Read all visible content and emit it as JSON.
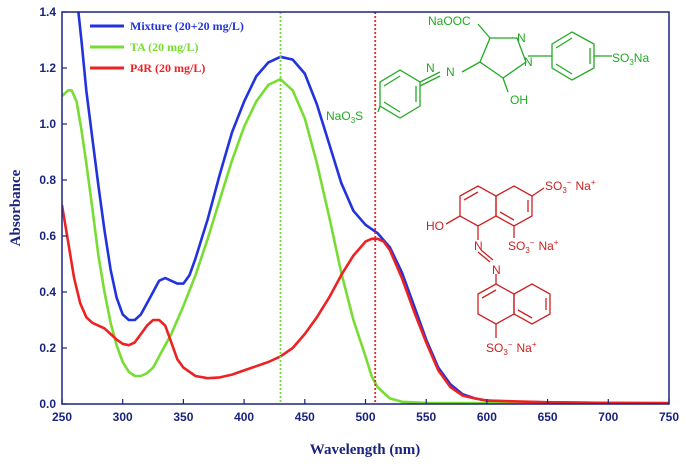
{
  "chart_data": {
    "type": "line",
    "xlabel": "Wavelength (nm)",
    "ylabel": "Absorbance",
    "xlim": [
      250,
      750
    ],
    "ylim": [
      0.0,
      1.4
    ],
    "xticks": [
      250,
      300,
      350,
      400,
      450,
      500,
      550,
      600,
      650,
      700,
      750
    ],
    "yticks": [
      0.0,
      0.2,
      0.4,
      0.6,
      0.8,
      1.0,
      1.2,
      1.4
    ],
    "xtick_labels": [
      "250",
      "300",
      "350",
      "400",
      "450",
      "500",
      "550",
      "600",
      "650",
      "700",
      "750"
    ],
    "ytick_labels": [
      "0.0",
      "0.2",
      "0.4",
      "0.6",
      "0.8",
      "1.0",
      "1.2",
      "1.4"
    ],
    "legend_position": "top-left",
    "grid": false,
    "series": [
      {
        "name": "Mixture (20+20 mg/L)",
        "color": "#2233dd",
        "points": [
          [
            262,
            1.46
          ],
          [
            266,
            1.3
          ],
          [
            270,
            1.12
          ],
          [
            275,
            0.95
          ],
          [
            280,
            0.78
          ],
          [
            285,
            0.62
          ],
          [
            290,
            0.48
          ],
          [
            295,
            0.38
          ],
          [
            300,
            0.32
          ],
          [
            305,
            0.3
          ],
          [
            310,
            0.3
          ],
          [
            315,
            0.32
          ],
          [
            320,
            0.36
          ],
          [
            325,
            0.4
          ],
          [
            330,
            0.44
          ],
          [
            335,
            0.45
          ],
          [
            340,
            0.44
          ],
          [
            345,
            0.43
          ],
          [
            350,
            0.43
          ],
          [
            355,
            0.46
          ],
          [
            360,
            0.52
          ],
          [
            370,
            0.66
          ],
          [
            380,
            0.82
          ],
          [
            390,
            0.97
          ],
          [
            400,
            1.08
          ],
          [
            410,
            1.17
          ],
          [
            420,
            1.22
          ],
          [
            430,
            1.24
          ],
          [
            440,
            1.23
          ],
          [
            450,
            1.18
          ],
          [
            460,
            1.07
          ],
          [
            470,
            0.93
          ],
          [
            480,
            0.79
          ],
          [
            490,
            0.69
          ],
          [
            500,
            0.64
          ],
          [
            510,
            0.61
          ],
          [
            520,
            0.56
          ],
          [
            530,
            0.47
          ],
          [
            540,
            0.35
          ],
          [
            550,
            0.23
          ],
          [
            560,
            0.13
          ],
          [
            570,
            0.07
          ],
          [
            580,
            0.035
          ],
          [
            590,
            0.02
          ],
          [
            600,
            0.012
          ],
          [
            620,
            0.008
          ],
          [
            650,
            0.006
          ],
          [
            700,
            0.004
          ],
          [
            750,
            0.003
          ]
        ]
      },
      {
        "name": "TA (20 mg/L)",
        "color": "#77dd33",
        "points": [
          [
            250,
            1.1
          ],
          [
            255,
            1.12
          ],
          [
            258,
            1.12
          ],
          [
            262,
            1.08
          ],
          [
            266,
            0.98
          ],
          [
            270,
            0.86
          ],
          [
            275,
            0.7
          ],
          [
            280,
            0.53
          ],
          [
            285,
            0.4
          ],
          [
            290,
            0.29
          ],
          [
            295,
            0.21
          ],
          [
            300,
            0.15
          ],
          [
            305,
            0.115
          ],
          [
            310,
            0.1
          ],
          [
            315,
            0.1
          ],
          [
            320,
            0.11
          ],
          [
            325,
            0.13
          ],
          [
            330,
            0.17
          ],
          [
            340,
            0.25
          ],
          [
            350,
            0.35
          ],
          [
            360,
            0.46
          ],
          [
            370,
            0.59
          ],
          [
            380,
            0.73
          ],
          [
            390,
            0.87
          ],
          [
            400,
            0.99
          ],
          [
            410,
            1.08
          ],
          [
            420,
            1.14
          ],
          [
            430,
            1.16
          ],
          [
            440,
            1.12
          ],
          [
            450,
            1.02
          ],
          [
            460,
            0.86
          ],
          [
            470,
            0.67
          ],
          [
            480,
            0.47
          ],
          [
            490,
            0.3
          ],
          [
            500,
            0.17
          ],
          [
            505,
            0.1
          ],
          [
            510,
            0.06
          ],
          [
            520,
            0.02
          ],
          [
            530,
            0.008
          ],
          [
            550,
            0.004
          ],
          [
            600,
            0.003
          ],
          [
            650,
            0.003
          ],
          [
            700,
            0.003
          ],
          [
            750,
            0.003
          ]
        ]
      },
      {
        "name": "P4R (20 mg/L)",
        "color": "#ee2222",
        "points": [
          [
            250,
            0.71
          ],
          [
            255,
            0.58
          ],
          [
            260,
            0.45
          ],
          [
            265,
            0.36
          ],
          [
            270,
            0.31
          ],
          [
            275,
            0.29
          ],
          [
            280,
            0.28
          ],
          [
            285,
            0.27
          ],
          [
            290,
            0.25
          ],
          [
            295,
            0.23
          ],
          [
            300,
            0.215
          ],
          [
            305,
            0.21
          ],
          [
            310,
            0.22
          ],
          [
            315,
            0.25
          ],
          [
            320,
            0.28
          ],
          [
            325,
            0.3
          ],
          [
            330,
            0.3
          ],
          [
            335,
            0.28
          ],
          [
            340,
            0.22
          ],
          [
            345,
            0.16
          ],
          [
            350,
            0.13
          ],
          [
            360,
            0.1
          ],
          [
            370,
            0.092
          ],
          [
            380,
            0.095
          ],
          [
            390,
            0.105
          ],
          [
            400,
            0.12
          ],
          [
            410,
            0.135
          ],
          [
            420,
            0.15
          ],
          [
            430,
            0.17
          ],
          [
            440,
            0.2
          ],
          [
            450,
            0.25
          ],
          [
            460,
            0.31
          ],
          [
            470,
            0.38
          ],
          [
            480,
            0.46
          ],
          [
            490,
            0.53
          ],
          [
            500,
            0.58
          ],
          [
            505,
            0.59
          ],
          [
            510,
            0.59
          ],
          [
            515,
            0.58
          ],
          [
            520,
            0.55
          ],
          [
            530,
            0.45
          ],
          [
            540,
            0.33
          ],
          [
            550,
            0.22
          ],
          [
            560,
            0.12
          ],
          [
            570,
            0.06
          ],
          [
            580,
            0.03
          ],
          [
            590,
            0.02
          ],
          [
            600,
            0.012
          ],
          [
            650,
            0.006
          ],
          [
            700,
            0.004
          ],
          [
            750,
            0.003
          ]
        ]
      }
    ],
    "vlines": [
      {
        "x": 430,
        "color": "#77dd33"
      },
      {
        "x": 508,
        "color": "#ee2222"
      }
    ]
  },
  "structures": {
    "ta": {
      "label_naooc": "NaOOC",
      "label_n_top": "N",
      "label_n_ring": "N",
      "label_n_azo1": "N",
      "label_n_azo2": "N",
      "label_so3na_right": "SO",
      "label_so3na_right_sub": "3",
      "label_so3na_right_tail": "Na",
      "label_naso3_left": "NaO",
      "label_naso3_left_sub": "3",
      "label_naso3_left_tail": "S",
      "label_oh": "OH",
      "color": "#22aa22"
    },
    "p4r": {
      "label_ho": "HO",
      "label_n1": "N",
      "label_n2": "N",
      "label_so3_top": "SO",
      "label_so3_top_sub": "3",
      "label_so3_top_sup": "−",
      "label_so3_top_na": "Na",
      "label_so3_top_na_sup": "+",
      "label_so3_mid": "SO",
      "label_so3_mid_sub": "3",
      "label_so3_mid_sup": "−",
      "label_so3_mid_na": "Na",
      "label_so3_mid_na_sup": "+",
      "label_so3_bot": "SO",
      "label_so3_bot_sub": "3",
      "label_so3_bot_sup": "−",
      "label_so3_bot_na": "Na",
      "label_so3_bot_na_sup": "+",
      "color": "#cc2222"
    }
  }
}
